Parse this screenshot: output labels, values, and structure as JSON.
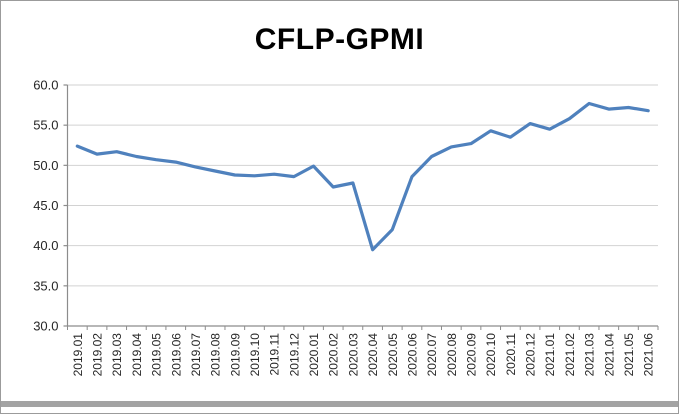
{
  "window": {
    "background": "#ffffff",
    "frame_border_color": "#9b9b9b",
    "bottom_divider_color": "#a3a3a3"
  },
  "chart_data": {
    "type": "line",
    "title": "CFLP-GPMI",
    "xlabel": "",
    "ylabel": "",
    "ylim": [
      30,
      60
    ],
    "ytick_interval": 5,
    "ytick_labels": [
      "60.0",
      "55.0",
      "50.0",
      "45.0",
      "40.0",
      "35.0",
      "30.0"
    ],
    "grid": "horizontal-major",
    "legend": "none",
    "line_color": "#4f81bd",
    "gridline_color": "#d2d2d2",
    "axis_color": "#8c8c8c",
    "label_color": "#262626",
    "categories": [
      "2019.01",
      "2019.02",
      "2019.03",
      "2019.04",
      "2019.05",
      "2019.06",
      "2019.07",
      "2019.08",
      "2019.09",
      "2019.10",
      "2019.11",
      "2019.12",
      "2020.01",
      "2020.02",
      "2020.03",
      "2020.04",
      "2020.05",
      "2020.06",
      "2020.07",
      "2020.08",
      "2020.09",
      "2020.10",
      "2020.11",
      "2020.12",
      "2021.01",
      "2021.02",
      "2021.03",
      "2021.04",
      "2021.05",
      "2021.06"
    ],
    "series": [
      {
        "name": "CFLP-GPMI",
        "values": [
          52.4,
          51.4,
          51.7,
          51.1,
          50.7,
          50.4,
          49.8,
          49.3,
          48.8,
          48.7,
          48.9,
          48.6,
          49.9,
          47.3,
          47.8,
          39.5,
          42.0,
          48.6,
          51.1,
          52.3,
          52.7,
          54.3,
          53.5,
          55.2,
          54.5,
          55.8,
          57.7,
          57.0,
          57.2,
          56.8
        ]
      }
    ]
  }
}
